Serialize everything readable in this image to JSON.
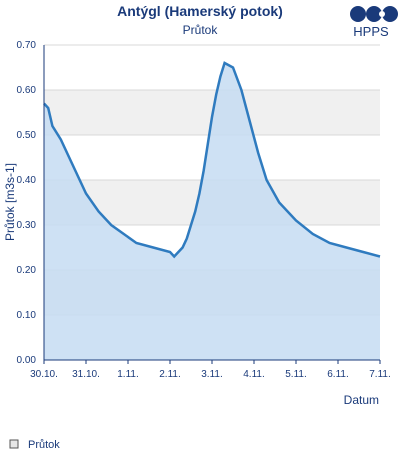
{
  "chart_data": {
    "type": "area",
    "title": "Antýgl (Hamerský potok)",
    "subtitle": "Průtok",
    "ylabel": "Průtok [m3s-1]",
    "xlabel": "Datum",
    "ylim": [
      0,
      0.7
    ],
    "yticks": [
      "0.00",
      "0.10",
      "0.20",
      "0.30",
      "0.40",
      "0.50",
      "0.60",
      "0.70"
    ],
    "xlim": [
      0,
      8
    ],
    "xticks": [
      "30.10.",
      "31.10.",
      "1.11.",
      "2.11.",
      "3.11.",
      "4.11.",
      "5.11.",
      "6.11.",
      "7.11."
    ],
    "grid": true,
    "legend_position": "bottom-left",
    "series": [
      {
        "name": "Průtok",
        "color": "#2f7bbf",
        "fill": "#c6dcf2",
        "x": [
          0,
          0.1,
          0.2,
          0.4,
          0.6,
          0.8,
          1.0,
          1.3,
          1.6,
          1.9,
          2.2,
          2.6,
          3.0,
          3.1,
          3.2,
          3.3,
          3.4,
          3.5,
          3.6,
          3.7,
          3.8,
          3.9,
          4.0,
          4.1,
          4.2,
          4.3,
          4.5,
          4.7,
          4.9,
          5.1,
          5.3,
          5.6,
          6.0,
          6.4,
          6.8,
          7.2,
          7.6,
          8.0
        ],
        "y": [
          0.57,
          0.56,
          0.52,
          0.49,
          0.45,
          0.41,
          0.37,
          0.33,
          0.3,
          0.28,
          0.26,
          0.25,
          0.24,
          0.23,
          0.24,
          0.25,
          0.27,
          0.3,
          0.33,
          0.37,
          0.42,
          0.48,
          0.54,
          0.59,
          0.63,
          0.66,
          0.65,
          0.6,
          0.53,
          0.46,
          0.4,
          0.35,
          0.31,
          0.28,
          0.26,
          0.25,
          0.24,
          0.23
        ]
      }
    ]
  },
  "logo": {
    "text": "HPPS"
  },
  "legend": {
    "label": "Průtok"
  }
}
